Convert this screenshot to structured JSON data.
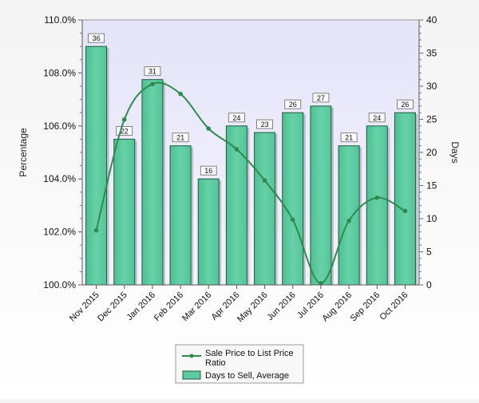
{
  "chart_data": {
    "type": "bar",
    "categories": [
      "Nov 2015",
      "Dec 2015",
      "Jan 2016",
      "Feb 2016",
      "Mar 2016",
      "Apr 2016",
      "May 2016",
      "Jun 2016",
      "Jul 2016",
      "Aug 2016",
      "Sep 2016",
      "Oct 2016"
    ],
    "ylabel": "Percentage",
    "y2label": "Days",
    "ylim": [
      100,
      110
    ],
    "y2lim": [
      0,
      40
    ],
    "yticks": [
      "100.0%",
      "102.0%",
      "104.0%",
      "106.0%",
      "108.0%",
      "110.0%"
    ],
    "ytick_values": [
      100,
      102,
      104,
      106,
      108,
      110
    ],
    "y2ticks": [
      "0",
      "5",
      "10",
      "15",
      "20",
      "25",
      "30",
      "35",
      "40"
    ],
    "y2tick_values": [
      0,
      5,
      10,
      15,
      20,
      25,
      30,
      35,
      40
    ],
    "grid": false,
    "legend_position": "bottom-center",
    "series": [
      {
        "name": "Sale Price to List Price Ratio",
        "kind": "line",
        "axis": "left",
        "color": "#2f8a4e",
        "values": [
          102.06,
          106.24,
          107.58,
          107.21,
          105.9,
          105.12,
          103.94,
          102.46,
          100.06,
          102.42,
          103.29,
          102.79
        ]
      },
      {
        "name": "Days to Sell, Average",
        "kind": "bar",
        "axis": "right",
        "color": "#5dcaa0",
        "values": [
          36,
          22,
          31,
          21,
          16,
          24,
          23,
          26,
          27,
          21,
          24,
          26
        ],
        "labels": [
          "36",
          "22",
          "31",
          "21",
          "16",
          "24",
          "23",
          "26",
          "27",
          "21",
          "24",
          "26"
        ]
      }
    ]
  },
  "legend": {
    "line_label_line1": "Sale Price to List Price",
    "line_label_line2": "Ratio",
    "bar_label": "Days to Sell, Average"
  },
  "colors": {
    "plot_background": "#e9e9fb",
    "bar_fill": "#5dcaa0",
    "bar_stroke": "#1f5a3c",
    "line": "#2f8a4e"
  }
}
